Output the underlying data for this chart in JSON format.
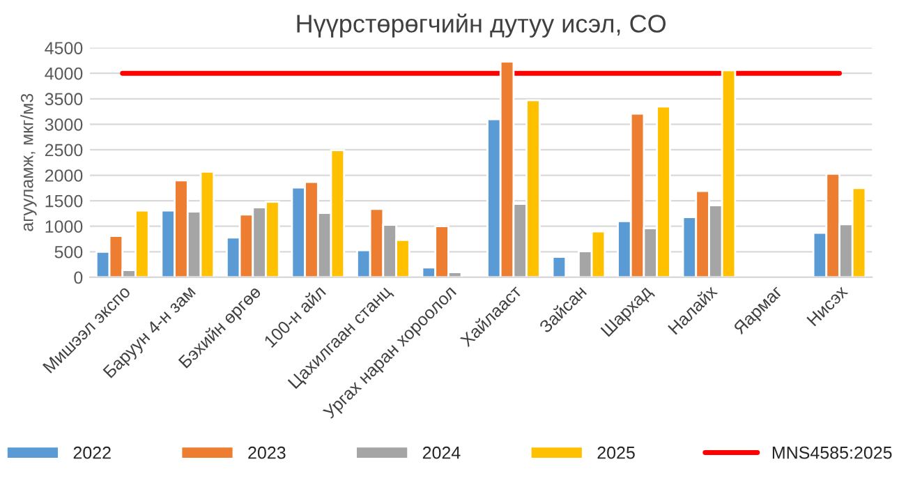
{
  "chart_data": {
    "type": "bar",
    "title": "Нүүрстөрөгчийн дутуу исэл, CO",
    "ylabel": "агууламж, мкг/м3",
    "categories": [
      "Мишээл экспо",
      "Баруун 4-н зам",
      "Бэхийн өргөө",
      "100-н айл",
      "Цахилгаан станц",
      "Ургах наран хороолол",
      "Хайлааст",
      "Зайсан",
      "Шархад",
      "Налайх",
      "Яармаг",
      "Нисэх"
    ],
    "series": [
      {
        "name": "2022",
        "color": "#5b9bd5",
        "values": [
          500,
          1310,
          780,
          1760,
          530,
          190,
          3100,
          400,
          1100,
          1180,
          null,
          870
        ]
      },
      {
        "name": "2023",
        "color": "#ed7d31",
        "values": [
          810,
          1900,
          1230,
          1870,
          1340,
          1000,
          4230,
          null,
          3210,
          1690,
          null,
          2030
        ]
      },
      {
        "name": "2024",
        "color": "#a5a5a5",
        "values": [
          140,
          1290,
          1370,
          1260,
          1030,
          100,
          1440,
          510,
          960,
          1410,
          null,
          1040
        ]
      },
      {
        "name": "2025",
        "color": "#ffc000",
        "values": [
          1310,
          2070,
          1480,
          2490,
          730,
          null,
          3470,
          900,
          3350,
          4060,
          null,
          1750
        ]
      },
      {
        "name": "MNS4585:2025",
        "type": "line",
        "color": "#ff0000",
        "values": [
          4000,
          4000,
          4000,
          4000,
          4000,
          4000,
          4000,
          4000,
          4000,
          4000,
          4000,
          4000
        ]
      }
    ],
    "ylim": [
      0,
      4500
    ],
    "yticks": [
      0,
      500,
      1000,
      1500,
      2000,
      2500,
      3000,
      3500,
      4000,
      4500
    ],
    "grid": "y",
    "legend": "bottom"
  }
}
